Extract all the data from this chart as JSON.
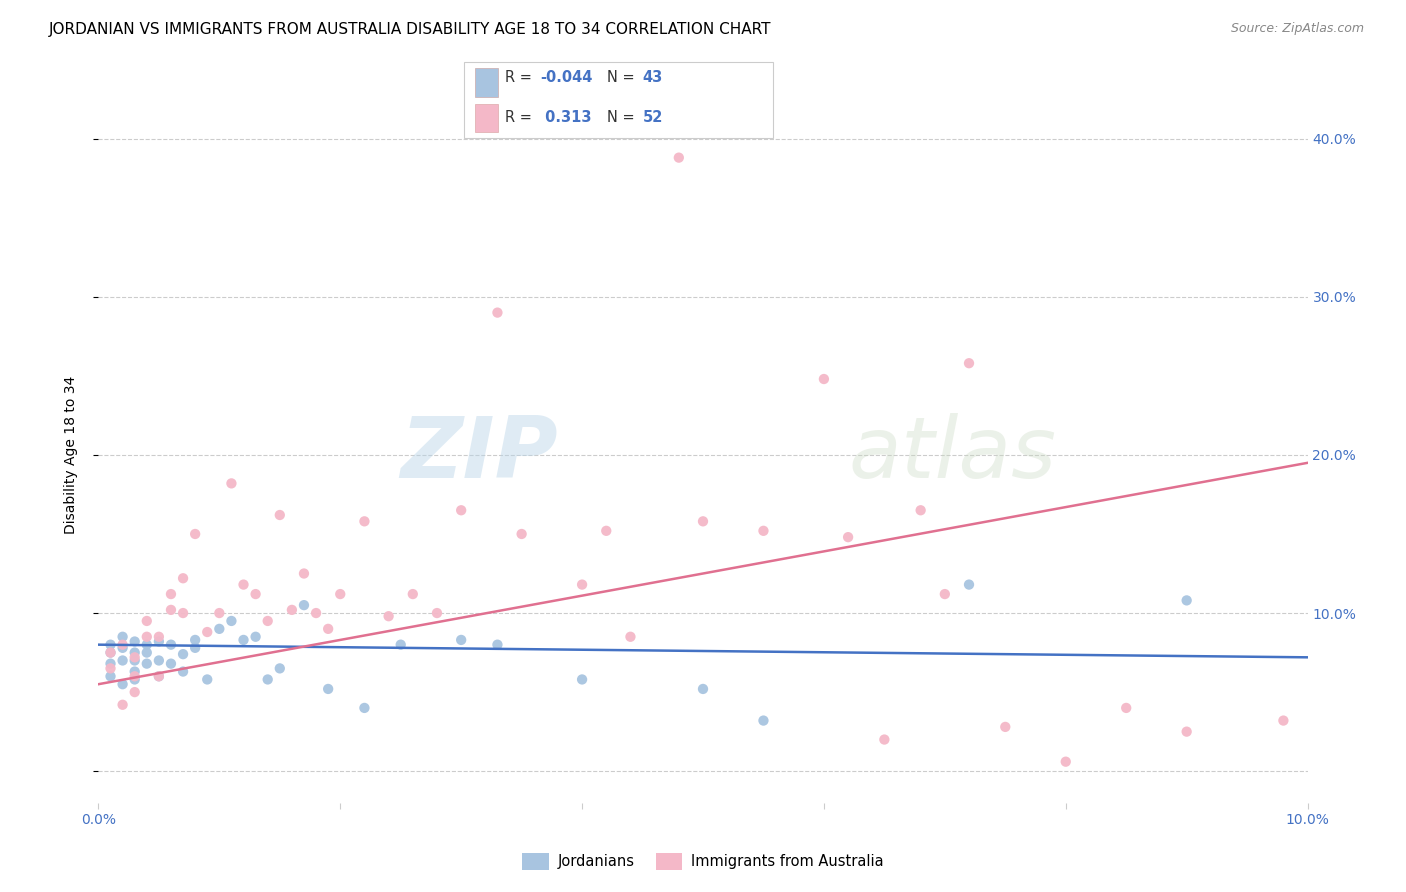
{
  "title": "JORDANIAN VS IMMIGRANTS FROM AUSTRALIA DISABILITY AGE 18 TO 34 CORRELATION CHART",
  "source": "Source: ZipAtlas.com",
  "ylabel": "Disability Age 18 to 34",
  "xmin": 0.0,
  "xmax": 0.1,
  "ymin": -0.02,
  "ymax": 0.42,
  "yticks": [
    0.0,
    0.1,
    0.2,
    0.3,
    0.4
  ],
  "ytick_labels": [
    "",
    "10.0%",
    "20.0%",
    "30.0%",
    "40.0%"
  ],
  "blue_color": "#4472c4",
  "pink_color": "#e07090",
  "blue_scatter_color": "#a8c4e0",
  "pink_scatter_color": "#f4b8c8",
  "watermark_zip": "ZIP",
  "watermark_atlas": "atlas",
  "blue_r": "-0.044",
  "blue_n": "43",
  "pink_r": "0.313",
  "pink_n": "52",
  "blue_points_x": [
    0.001,
    0.001,
    0.001,
    0.001,
    0.002,
    0.002,
    0.002,
    0.002,
    0.003,
    0.003,
    0.003,
    0.003,
    0.003,
    0.004,
    0.004,
    0.004,
    0.005,
    0.005,
    0.005,
    0.006,
    0.006,
    0.007,
    0.007,
    0.008,
    0.008,
    0.009,
    0.01,
    0.011,
    0.012,
    0.013,
    0.014,
    0.015,
    0.017,
    0.019,
    0.022,
    0.025,
    0.03,
    0.033,
    0.04,
    0.05,
    0.055,
    0.072,
    0.09
  ],
  "blue_points_y": [
    0.075,
    0.08,
    0.068,
    0.06,
    0.078,
    0.085,
    0.07,
    0.055,
    0.075,
    0.082,
    0.063,
    0.07,
    0.058,
    0.08,
    0.068,
    0.075,
    0.082,
    0.07,
    0.06,
    0.08,
    0.068,
    0.074,
    0.063,
    0.078,
    0.083,
    0.058,
    0.09,
    0.095,
    0.083,
    0.085,
    0.058,
    0.065,
    0.105,
    0.052,
    0.04,
    0.08,
    0.083,
    0.08,
    0.058,
    0.052,
    0.032,
    0.118,
    0.108
  ],
  "pink_points_x": [
    0.001,
    0.001,
    0.002,
    0.002,
    0.003,
    0.003,
    0.003,
    0.004,
    0.004,
    0.005,
    0.005,
    0.006,
    0.006,
    0.007,
    0.007,
    0.008,
    0.009,
    0.01,
    0.011,
    0.012,
    0.013,
    0.014,
    0.015,
    0.016,
    0.017,
    0.018,
    0.019,
    0.02,
    0.022,
    0.024,
    0.026,
    0.028,
    0.03,
    0.033,
    0.035,
    0.04,
    0.042,
    0.044,
    0.048,
    0.05,
    0.055,
    0.06,
    0.062,
    0.065,
    0.068,
    0.07,
    0.072,
    0.075,
    0.08,
    0.085,
    0.09,
    0.098
  ],
  "pink_points_y": [
    0.065,
    0.075,
    0.08,
    0.042,
    0.072,
    0.06,
    0.05,
    0.085,
    0.095,
    0.085,
    0.06,
    0.112,
    0.102,
    0.122,
    0.1,
    0.15,
    0.088,
    0.1,
    0.182,
    0.118,
    0.112,
    0.095,
    0.162,
    0.102,
    0.125,
    0.1,
    0.09,
    0.112,
    0.158,
    0.098,
    0.112,
    0.1,
    0.165,
    0.29,
    0.15,
    0.118,
    0.152,
    0.085,
    0.388,
    0.158,
    0.152,
    0.248,
    0.148,
    0.02,
    0.165,
    0.112,
    0.258,
    0.028,
    0.006,
    0.04,
    0.025,
    0.032
  ],
  "blue_line_x": [
    0.0,
    0.1
  ],
  "blue_line_y": [
    0.08,
    0.072
  ],
  "pink_line_x": [
    0.0,
    0.1
  ],
  "pink_line_y": [
    0.055,
    0.195
  ],
  "background_color": "#ffffff",
  "grid_color": "#cccccc",
  "legend_label_blue": "Jordanians",
  "legend_label_pink": "Immigrants from Australia"
}
